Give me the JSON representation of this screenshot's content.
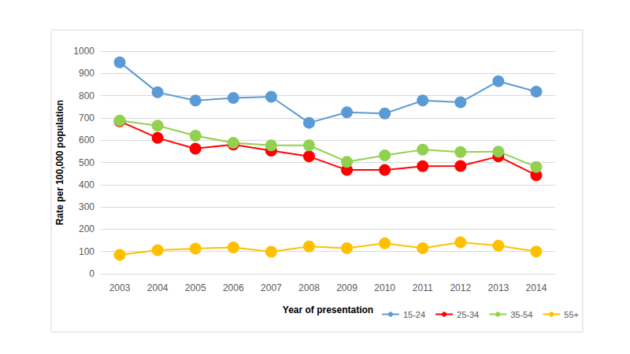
{
  "chart_data": {
    "type": "line",
    "x_label": "Year of presentation",
    "y_label": "Rate per 100,000 population",
    "categories": [
      "2003",
      "2004",
      "2005",
      "2006",
      "2007",
      "2008",
      "2009",
      "2010",
      "2011",
      "2012",
      "2013",
      "2014"
    ],
    "series": [
      {
        "name": "15-24",
        "color": "#5B9BD5",
        "values": [
          950,
          815,
          778,
          790,
          795,
          678,
          725,
          720,
          778,
          770,
          865,
          818
        ]
      },
      {
        "name": "25-34",
        "color": "#FF0000",
        "values": [
          685,
          610,
          562,
          580,
          553,
          527,
          466,
          466,
          483,
          484,
          527,
          443
        ]
      },
      {
        "name": "35-54",
        "color": "#92D050",
        "values": [
          688,
          665,
          620,
          588,
          577,
          577,
          503,
          532,
          557,
          547,
          549,
          480
        ]
      },
      {
        "name": "55+",
        "color": "#FFC000",
        "values": [
          85,
          106,
          113,
          118,
          99,
          123,
          115,
          137,
          115,
          141,
          126,
          100
        ]
      }
    ],
    "ylim": [
      0,
      1000
    ],
    "yticks": [
      0,
      100,
      200,
      300,
      400,
      500,
      600,
      700,
      800,
      900,
      1000
    ],
    "grid": true,
    "legend": "bottom-right",
    "marker": "circle"
  }
}
